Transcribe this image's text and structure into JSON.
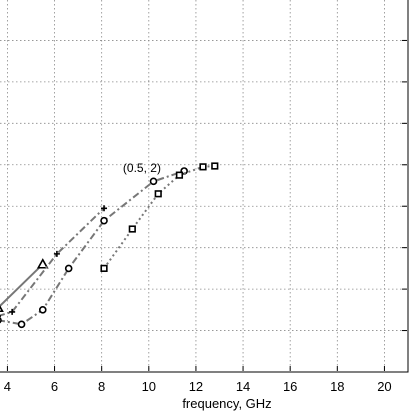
{
  "chart_data": {
    "type": "line",
    "xlabel": "frequency, GHz",
    "ylabel": "",
    "xlim": [
      3.6,
      21.0
    ],
    "ylim": [
      0,
      9.0
    ],
    "xticks": [
      4,
      6,
      8,
      10,
      12,
      14,
      16,
      18,
      20
    ],
    "xtick_labels": [
      "4",
      "6",
      "8",
      "10",
      "12",
      "14",
      "16",
      "18",
      "20"
    ],
    "ygrid": [
      1,
      2,
      3,
      4,
      5,
      6,
      7,
      8
    ],
    "grid": true,
    "annotation": {
      "text": "(0.5, 2)",
      "x": 10.6,
      "y": 4.8
    },
    "series": [
      {
        "marker": "triangle",
        "line_style": "solid",
        "color": "#777777",
        "x": [
          3.6,
          5.5
        ],
        "y": [
          1.55,
          2.6
        ]
      },
      {
        "marker": "plus",
        "line_style": "dashdot",
        "color": "#777777",
        "x": [
          3.6,
          4.2,
          6.1,
          8.1
        ],
        "y": [
          1.35,
          1.45,
          2.85,
          3.95
        ]
      },
      {
        "marker": "circle",
        "line_style": "dashdot",
        "color": "#777777",
        "x": [
          3.6,
          4.6,
          5.5,
          6.6,
          8.1,
          10.2,
          11.5
        ],
        "y": [
          1.25,
          1.15,
          1.5,
          2.5,
          3.65,
          4.6,
          4.85
        ]
      },
      {
        "marker": "square",
        "line_style": "dotted",
        "color": "#777777",
        "x": [
          8.1,
          9.3,
          10.4,
          11.3,
          12.3,
          12.8
        ],
        "y": [
          2.5,
          3.45,
          4.3,
          4.75,
          4.95,
          4.97
        ]
      }
    ]
  }
}
